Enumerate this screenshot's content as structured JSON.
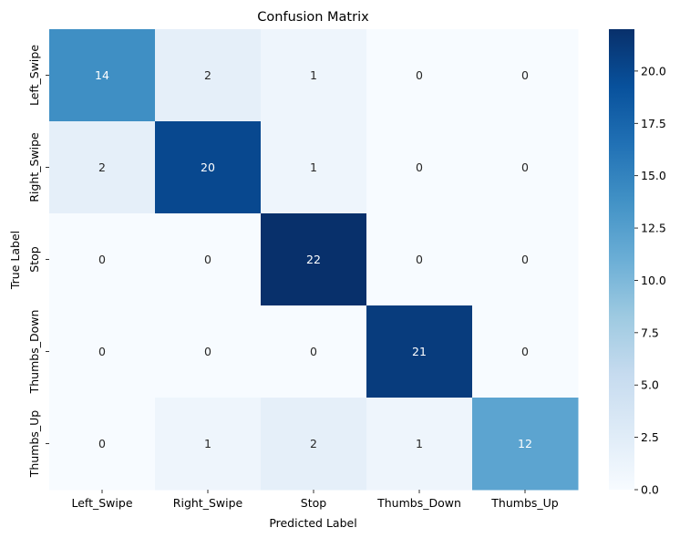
{
  "chart_data": {
    "type": "heatmap",
    "title": "Confusion Matrix",
    "xlabel": "Predicted Label",
    "ylabel": "True Label",
    "x_categories": [
      "Left_Swipe",
      "Right_Swipe",
      "Stop",
      "Thumbs_Down",
      "Thumbs_Up"
    ],
    "y_categories": [
      "Left_Swipe",
      "Right_Swipe",
      "Stop",
      "Thumbs_Down",
      "Thumbs_Up"
    ],
    "values": [
      [
        14,
        2,
        1,
        0,
        0
      ],
      [
        2,
        20,
        1,
        0,
        0
      ],
      [
        0,
        0,
        22,
        0,
        0
      ],
      [
        0,
        0,
        0,
        21,
        0
      ],
      [
        0,
        1,
        2,
        1,
        12
      ]
    ],
    "colormap": "Blues",
    "value_range": [
      0,
      22
    ],
    "colorbar_ticks": [
      "0.0",
      "2.5",
      "5.0",
      "7.5",
      "10.0",
      "12.5",
      "15.0",
      "17.5",
      "20.0"
    ],
    "annotations": true,
    "grid": false
  }
}
